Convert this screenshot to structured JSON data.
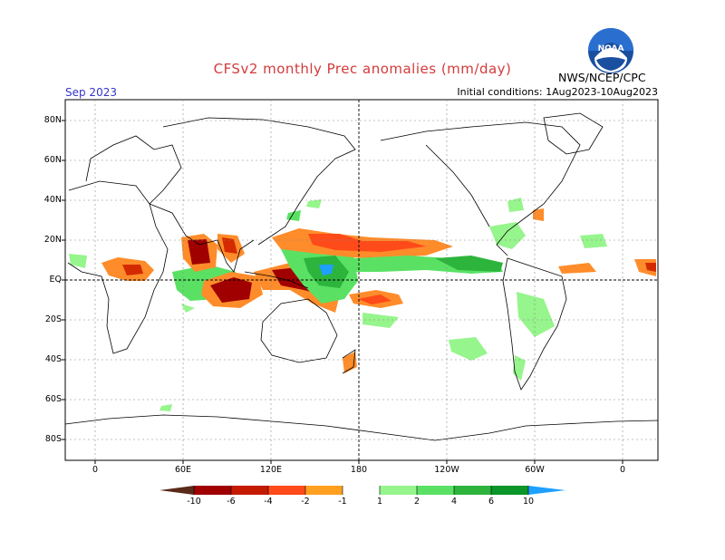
{
  "header": {
    "title": "CFSv2 monthly Prec anomalies (mm/day)",
    "month": "Sep 2023",
    "initial_conditions": "Initial conditions: 1Aug2023-10Aug2023",
    "agency": "NWS/NCEP/CPC",
    "logo_text": "NOAA"
  },
  "axes": {
    "lat_labels": [
      "80N",
      "60N",
      "40N",
      "20N",
      "EQ",
      "20S",
      "40S",
      "60S",
      "80S"
    ],
    "lon_labels": [
      "0",
      "60E",
      "120E",
      "180",
      "120W",
      "60W",
      "0"
    ]
  },
  "colorbar": {
    "labels": [
      "-10",
      "-6",
      "-4",
      "-2",
      "-1",
      "1",
      "2",
      "4",
      "6",
      "10"
    ],
    "colors": [
      "#5a2a1a",
      "#a00000",
      "#d42a00",
      "#ff4a1a",
      "#ff8c2a",
      "#ffb22a",
      "#ffffff",
      "#96f58c",
      "#5ae164",
      "#2db43c",
      "#0a9628",
      "#1ea0ff"
    ]
  },
  "colors": {
    "title": "#d43a3a",
    "month": "#3333cc",
    "coast": "#000000",
    "grid": "#888888"
  }
}
